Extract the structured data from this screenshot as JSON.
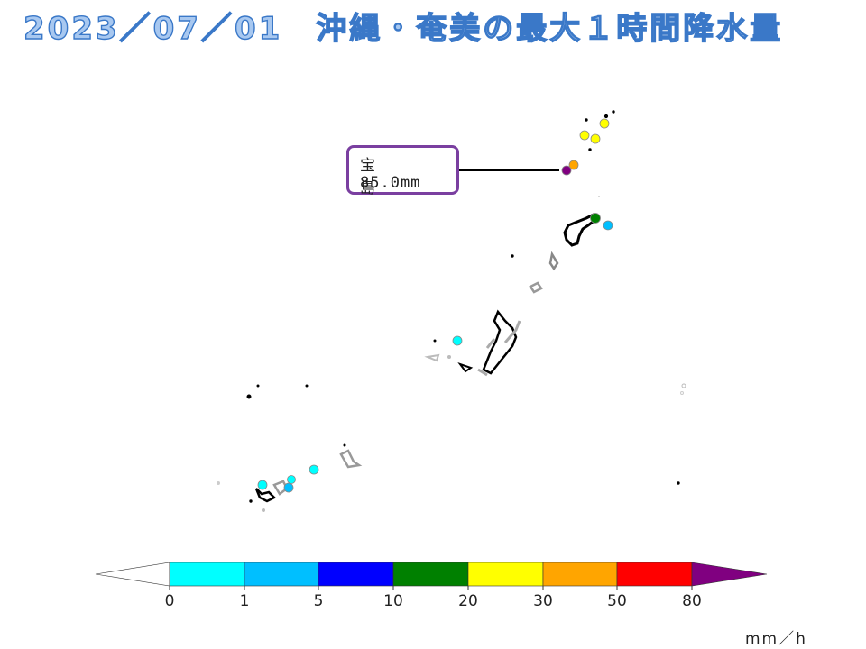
{
  "title": "2023／07／01　沖縄・奄美の最大１時間降水量",
  "callout": {
    "station": "宝島",
    "value": "85.0mm"
  },
  "legend": {
    "unit": "mm／h",
    "ticks": [
      "0",
      "1",
      "5",
      "10",
      "20",
      "30",
      "50",
      "80"
    ],
    "bins": [
      {
        "range": "<0",
        "color": "#ffffff"
      },
      {
        "range": "0-1",
        "color": "#00ffff"
      },
      {
        "range": "1-5",
        "color": "#00bfff"
      },
      {
        "range": "5-10",
        "color": "#0000ff"
      },
      {
        "range": "10-20",
        "color": "#008000"
      },
      {
        "range": "20-30",
        "color": "#ffff00"
      },
      {
        "range": "30-50",
        "color": "#ffa500"
      },
      {
        "range": "50-80",
        "color": "#ff0000"
      },
      {
        "range": ">=80",
        "color": "#800080"
      }
    ]
  }
}
